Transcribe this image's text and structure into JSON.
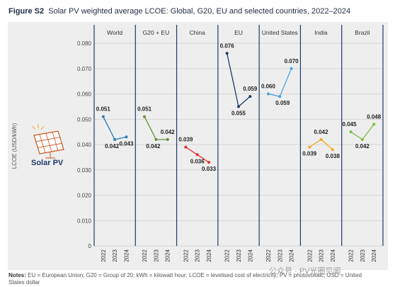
{
  "figure": {
    "label": "Figure S2",
    "title": "Solar PV weighted average LCOE: Global, G20, EU and selected countries, 2022–2024"
  },
  "legend": {
    "label": "Solar PV",
    "icon": "solar-panel-icon"
  },
  "notes": {
    "label": "Notes:",
    "text": "EU = European Union; G20 = Group of 20; kWh = kilowatt hour; LCOE = levelised cost of electricity; PV = photovoltaic; USD = United States dollar"
  },
  "watermark": "公众号 · PV光圈见闻",
  "colors": {
    "World": "#2b7bb9",
    "G20 + EU": "#6b8e3d",
    "China": "#e3302f",
    "EU": "#1d3a6e",
    "United States": "#4aa3df",
    "India": "#f5a623",
    "Brazil": "#7dbb42",
    "divider": "#1d3a6e"
  },
  "chart_data": {
    "type": "line",
    "ylabel": "LCOE (USD/kWh)",
    "ylim": [
      0,
      0.08
    ],
    "yticks": [
      "0",
      "0.010",
      "0.020",
      "0.030",
      "0.040",
      "0.050",
      "0.060",
      "0.070",
      "0.080"
    ],
    "x": [
      "2022",
      "2023",
      "2024"
    ],
    "grid": true,
    "series": [
      {
        "name": "World",
        "values": [
          0.051,
          0.042,
          0.043
        ],
        "labels": [
          "0.051",
          "0.042",
          "0.043"
        ]
      },
      {
        "name": "G20 + EU",
        "values": [
          0.051,
          0.042,
          0.042
        ],
        "labels": [
          "0.051",
          "0.042",
          "0.042"
        ]
      },
      {
        "name": "China",
        "values": [
          0.039,
          0.036,
          0.033
        ],
        "labels": [
          "0.039",
          "0.036",
          "0.033"
        ]
      },
      {
        "name": "EU",
        "values": [
          0.076,
          0.055,
          0.059
        ],
        "labels": [
          "0.076",
          "0.055",
          "0.059"
        ]
      },
      {
        "name": "United States",
        "values": [
          0.06,
          0.059,
          0.07
        ],
        "labels": [
          "0.060",
          "0.059",
          "0.070"
        ]
      },
      {
        "name": "India",
        "values": [
          0.039,
          0.042,
          0.038
        ],
        "labels": [
          "0.039",
          "0.042",
          "0.038"
        ]
      },
      {
        "name": "Brazil",
        "values": [
          0.045,
          0.042,
          0.048
        ],
        "labels": [
          "0.045",
          "0.042",
          "0.048"
        ]
      }
    ]
  }
}
